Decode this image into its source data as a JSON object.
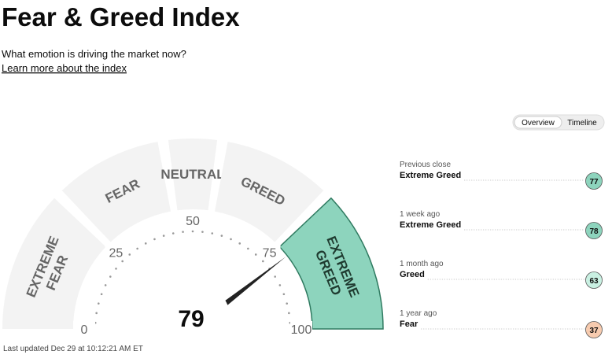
{
  "header": {
    "title": "Fear & Greed Index",
    "subtitle": "What emotion is driving the market now?",
    "link": "Learn more about the index"
  },
  "tabs": [
    "Overview",
    "Timeline"
  ],
  "gauge": {
    "value": 79,
    "ticks": [
      0,
      25,
      50,
      75,
      100
    ],
    "segments": [
      [
        "EXTREME",
        "FEAR"
      ],
      [
        "FEAR"
      ],
      [
        "NEUTRAL"
      ],
      [
        "GREED"
      ],
      [
        "EXTREME",
        "GREED"
      ]
    ]
  },
  "history": [
    {
      "period": "Previous close",
      "rating": "Extreme Greed",
      "value": 77,
      "color": "#8dd4bd"
    },
    {
      "period": "1 week ago",
      "rating": "Extreme Greed",
      "value": 78,
      "color": "#8dd4bd"
    },
    {
      "period": "1 month ago",
      "rating": "Greed",
      "value": 63,
      "color": "#c9f0e2"
    },
    {
      "period": "1 year ago",
      "rating": "Fear",
      "value": 37,
      "color": "#f7cbaf"
    }
  ],
  "footer": "Last updated Dec 29 at 10:12:21 AM ET"
}
